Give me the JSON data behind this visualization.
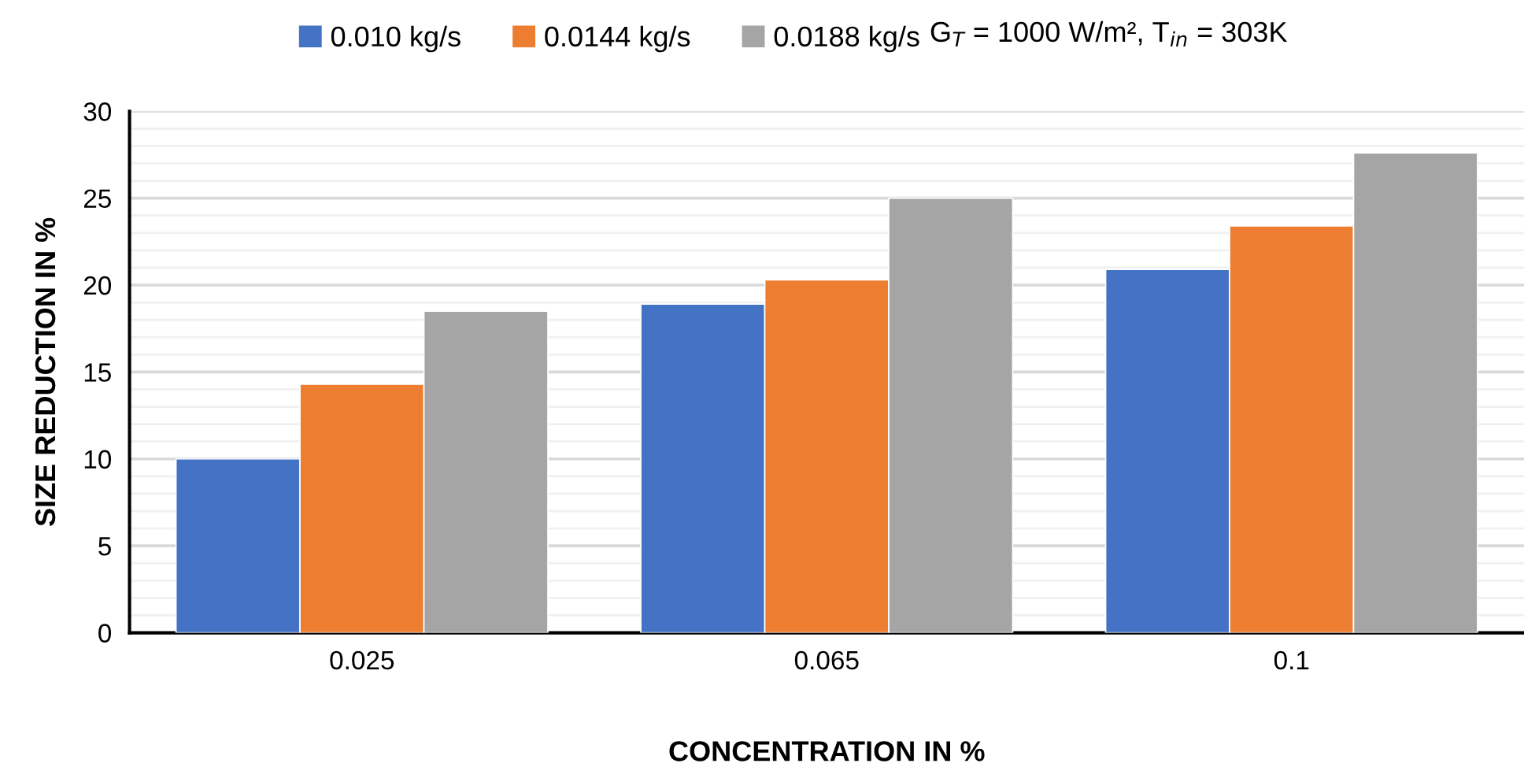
{
  "chart_data": {
    "type": "bar",
    "xlabel": "CONCENTRATION IN %",
    "ylabel": "SIZE REDUCTION IN %",
    "categories": [
      "0.025",
      "0.065",
      "0.1"
    ],
    "series": [
      {
        "name": "0.010 kg/s",
        "color": "#4472c4",
        "values": [
          10,
          18.9,
          20.9
        ]
      },
      {
        "name": "0.0144 kg/s",
        "color": "#ed7d31",
        "values": [
          14.3,
          20.3,
          23.4
        ]
      },
      {
        "name": "0.0188 kg/s",
        "color": "#a5a5a5",
        "values": [
          18.5,
          25,
          27.6
        ]
      }
    ],
    "ylim": [
      0,
      30
    ],
    "yticks": [
      0,
      {
        "value": 1,
        "label": null
      },
      {
        "value": 2,
        "label": null
      },
      {
        "value": 3,
        "label": null
      },
      {
        "value": 4,
        "label": null
      },
      5,
      {
        "value": 6,
        "label": null
      },
      {
        "value": 7,
        "label": null
      },
      {
        "value": 8,
        "label": null
      },
      {
        "value": 9,
        "label": null
      },
      10,
      {
        "value": 11,
        "label": null
      },
      {
        "value": 12,
        "label": null
      },
      {
        "value": 13,
        "label": null
      },
      {
        "value": 14,
        "label": null
      },
      15,
      {
        "value": 16,
        "label": null
      },
      {
        "value": 17,
        "label": null
      },
      {
        "value": 18,
        "label": null
      },
      {
        "value": 19,
        "label": null
      },
      20,
      {
        "value": 21,
        "label": null
      },
      {
        "value": 22,
        "label": null
      },
      {
        "value": 23,
        "label": null
      },
      {
        "value": 24,
        "label": null
      },
      25,
      {
        "value": 26,
        "label": null
      },
      {
        "value": 27,
        "label": null
      },
      {
        "value": 28,
        "label": null
      },
      {
        "value": 29,
        "label": null
      },
      30
    ],
    "grid": "y",
    "legend": "top",
    "annotations": [
      "G$_{T}$ = 1000 W/m², T$_{in}$ = 303K"
    ]
  }
}
